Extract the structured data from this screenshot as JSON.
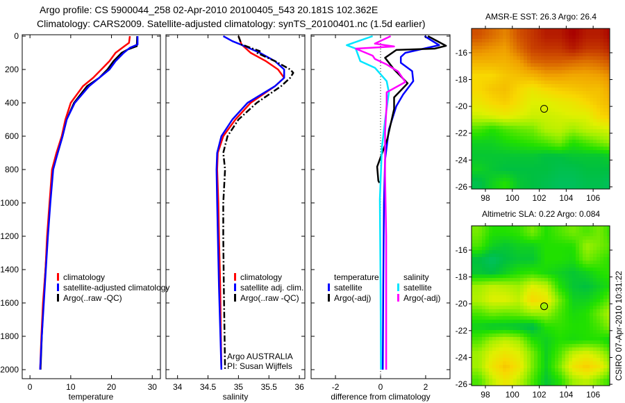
{
  "header": {
    "title_line1": "Argo profile: CS 5900044_258 02-Apr-2010 20100405_543 20.181S 102.362E",
    "title_line2": "Climatology: CARS2009. Satellite-adjusted climatology: synTS_20100401.nc (1.5d earlier)"
  },
  "footer": {
    "stamp": "CSIRO 07-Apr-2010 10:31:22"
  },
  "colors": {
    "climatology": "#ff0000",
    "satellite": "#0000ff",
    "argo": "#000000",
    "sal_satellite": "#00e5ff",
    "sal_argo": "#ff00ff"
  },
  "chart_data": [
    {
      "type": "line",
      "xlabel": "temperature",
      "ylabel": "",
      "xlim": [
        -1.9,
        32
      ],
      "ylim": [
        2055,
        0
      ],
      "xticks": [
        "0",
        "10",
        "20",
        "30"
      ],
      "yticks": [
        "0",
        "200",
        "400",
        "600",
        "800",
        "1000",
        "1200",
        "1400",
        "1600",
        "1800",
        "2000"
      ],
      "legend": {
        "placement": "center-left",
        "entries": [
          "climatology",
          "satellite-adjusted climatology",
          "Argo(..raw -QC)"
        ]
      },
      "series": [
        {
          "name": "Argo(..raw -QC)",
          "color": "#000000",
          "depth": [
            0,
            60,
            80,
            100,
            150,
            200,
            250,
            300,
            400,
            500,
            600,
            700,
            800,
            1000,
            1200,
            1400,
            1600,
            1800,
            2000
          ],
          "values": [
            26.3,
            26.2,
            24,
            22.5,
            20.5,
            19,
            17,
            14,
            10.8,
            9,
            8,
            6.8,
            5.5,
            4.9,
            4.3,
            3.8,
            3.3,
            2.9,
            2.6
          ]
        },
        {
          "name": "climatology",
          "color": "#ff0000",
          "depth": [
            0,
            40,
            60,
            100,
            150,
            200,
            250,
            300,
            400,
            500,
            600,
            700,
            800,
            1000,
            1200,
            1400,
            1600,
            1800,
            2000
          ],
          "values": [
            24.5,
            24.3,
            23.2,
            21,
            19.5,
            17.5,
            15.5,
            13,
            10,
            8.7,
            7.8,
            6.5,
            5.4,
            4.8,
            4.2,
            3.8,
            3.2,
            2.8,
            2.5
          ]
        },
        {
          "name": "satellite-adjusted climatology",
          "color": "#0000ff",
          "depth": [
            0,
            50,
            70,
            100,
            150,
            200,
            250,
            300,
            400,
            500,
            600,
            700,
            800,
            1000,
            1200,
            1400,
            1600,
            1800,
            2000
          ],
          "values": [
            26.4,
            26.4,
            24.5,
            23,
            21,
            19.5,
            17,
            14.5,
            11,
            9,
            8,
            6.8,
            5.7,
            5,
            4.4,
            3.9,
            3.4,
            2.9,
            2.5
          ]
        }
      ]
    },
    {
      "type": "line",
      "xlabel": "salinity",
      "ylabel": "",
      "xlim": [
        33.81,
        36.09
      ],
      "ylim": [
        2055,
        0
      ],
      "xticks": [
        "34",
        "34.5",
        "35",
        "35.5",
        "36"
      ],
      "legend": {
        "placement": "center-right",
        "entries": [
          "climatology",
          "satellite adj. clim.",
          "Argo(..raw -QC)"
        ]
      },
      "annotations": [
        "Argo AUSTRALIA",
        "PI: Susan Wijffels"
      ],
      "series": [
        {
          "name": "climatology",
          "color": "#ff0000",
          "depth": [
            0,
            50,
            100,
            150,
            200,
            250,
            300,
            400,
            500,
            600,
            700,
            800,
            1000,
            1200,
            1500,
            2000
          ],
          "values": [
            35.0,
            35.05,
            35.2,
            35.45,
            35.65,
            35.75,
            35.6,
            35.2,
            34.95,
            34.75,
            34.66,
            34.65,
            34.67,
            34.68,
            34.7,
            34.72
          ]
        },
        {
          "name": "satellite adj. clim.",
          "color": "#0000ff",
          "depth": [
            0,
            30,
            60,
            100,
            150,
            200,
            250,
            300,
            400,
            500,
            600,
            700,
            800,
            1000,
            1500,
            2000
          ],
          "values": [
            34.75,
            34.9,
            35.1,
            35.35,
            35.6,
            35.75,
            35.75,
            35.6,
            35.15,
            34.9,
            34.72,
            34.65,
            34.64,
            34.65,
            34.68,
            34.72
          ]
        },
        {
          "name": "Argo(..raw -QC)",
          "color": "#000000",
          "depth": [
            0,
            50,
            90,
            100,
            150,
            200,
            220,
            250,
            300,
            400,
            500,
            600,
            700,
            800,
            1000,
            1200,
            1500,
            2000
          ],
          "values": [
            35.0,
            35.05,
            35.35,
            35.3,
            35.6,
            35.85,
            35.9,
            35.85,
            35.7,
            35.3,
            35.0,
            34.82,
            34.75,
            34.78,
            34.75,
            34.75,
            34.76,
            34.78
          ]
        }
      ]
    },
    {
      "type": "line",
      "xlabel": "difference from climatology",
      "ylabel": "",
      "xlim": [
        -3.08,
        3.08
      ],
      "ylim": [
        2055,
        0
      ],
      "xticks": [
        "-2",
        "0",
        "2"
      ],
      "legend": {
        "placement": "center",
        "temp_heading": "temperature",
        "sal_heading": "salinity",
        "entries": [
          "satellite",
          "Argo(-adj)",
          "satellite",
          "Argo(-adj)"
        ]
      },
      "series": [
        {
          "name": "temperature satellite",
          "color": "#0000ff",
          "depth": [
            0,
            54,
            100,
            125,
            160,
            210,
            270,
            350,
            420,
            560,
            740,
            1000,
            1500,
            2000
          ],
          "values": [
            1.95,
            2.6,
            1.1,
            0.9,
            0.9,
            1.4,
            1.45,
            1.0,
            0.7,
            0.37,
            0.2,
            0.15,
            0.12,
            0.1
          ]
        },
        {
          "name": "temperature Argo(-adj)",
          "color": "#000000",
          "depth": [
            0,
            58,
            75,
            83,
            130,
            200,
            283,
            367,
            437,
            617,
            783,
            867,
            880
          ],
          "values": [
            2.1,
            2.9,
            2.4,
            0.7,
            0.2,
            0.6,
            1.2,
            0.6,
            0.6,
            0.3,
            -0.15,
            -0.1,
            -0.05
          ]
        },
        {
          "name": "salinity satellite",
          "color": "#00e5ff",
          "depth": [
            0,
            54,
            75,
            150,
            190,
            270,
            337,
            505,
            670,
            980,
            1500,
            2000
          ],
          "values": [
            -0.35,
            -1.5,
            -1.1,
            -0.9,
            -0.25,
            0.27,
            0.37,
            0.2,
            0.06,
            -0.03,
            0.0,
            0.02
          ]
        },
        {
          "name": "salinity Argo(-adj)",
          "color": "#ff00ff",
          "depth": [
            0,
            45,
            62,
            75,
            117,
            137,
            170,
            212,
            275,
            337,
            408,
            575,
            838,
            1200,
            2000
          ],
          "values": [
            0.45,
            -0.25,
            0.6,
            -1.1,
            -0.35,
            -0.25,
            0.27,
            0.78,
            1.1,
            0.27,
            0.27,
            0.2,
            0.2,
            0.25,
            0.25
          ]
        }
      ]
    },
    {
      "type": "heatmap",
      "title": "AMSR-E SST: 26.3 Argo: 26.4",
      "lon_range": [
        96.97,
        107.23
      ],
      "lat_range": [
        -26.16,
        -14.19
      ],
      "xticks": [
        "98",
        "100",
        "102",
        "104",
        "106"
      ],
      "yticks": [
        "-16",
        "-18",
        "-20",
        "-22",
        "-24",
        "-26"
      ],
      "argo_position": [
        102.362,
        -20.181
      ],
      "grid_lon": [
        97.5,
        98.5,
        99.5,
        100.5,
        101.5,
        102.5,
        103.5,
        104.5,
        105.5,
        106.5,
        107.5
      ],
      "grid_lat": [
        -14.7,
        -15.7,
        -16.7,
        -17.7,
        -18.7,
        -19.7,
        -20.7,
        -21.7,
        -22.7,
        -23.7,
        -24.7,
        -25.7
      ],
      "values_normalized": [
        [
          0.85,
          0.8,
          0.75,
          0.85,
          0.9,
          0.95,
          0.95,
          1.0,
          0.95,
          0.95,
          1.0
        ],
        [
          0.75,
          0.72,
          0.7,
          0.8,
          0.88,
          0.9,
          0.9,
          0.95,
          0.9,
          0.9,
          0.95
        ],
        [
          0.65,
          0.65,
          0.65,
          0.7,
          0.8,
          0.82,
          0.82,
          0.8,
          0.78,
          0.8,
          0.85
        ],
        [
          0.55,
          0.55,
          0.6,
          0.62,
          0.65,
          0.7,
          0.7,
          0.68,
          0.68,
          0.7,
          0.75
        ],
        [
          0.55,
          0.6,
          0.62,
          0.55,
          0.5,
          0.55,
          0.58,
          0.6,
          0.62,
          0.62,
          0.7
        ],
        [
          0.5,
          0.55,
          0.58,
          0.52,
          0.45,
          0.45,
          0.48,
          0.5,
          0.55,
          0.6,
          0.65
        ],
        [
          0.42,
          0.45,
          0.48,
          0.45,
          0.42,
          0.42,
          0.43,
          0.45,
          0.45,
          0.55,
          0.6
        ],
        [
          0.25,
          0.2,
          0.25,
          0.28,
          0.3,
          0.38,
          0.4,
          0.35,
          0.4,
          0.42,
          0.45
        ],
        [
          0.15,
          0.15,
          0.18,
          0.2,
          0.22,
          0.25,
          0.3,
          0.2,
          0.25,
          0.3,
          0.35
        ],
        [
          0.12,
          0.12,
          0.12,
          0.12,
          0.12,
          0.1,
          0.1,
          0.12,
          0.12,
          0.12,
          0.15
        ],
        [
          0.15,
          0.12,
          0.1,
          0.1,
          0.1,
          0.1,
          0.08,
          0.08,
          0.1,
          0.1,
          0.1
        ],
        [
          0.08,
          0.15,
          0.2,
          0.12,
          0.1,
          0.08,
          0.06,
          0.06,
          0.08,
          0.08,
          0.05
        ]
      ]
    },
    {
      "type": "heatmap",
      "title": "Altimetric SLA: 0.22 Argo: 0.084",
      "lon_range": [
        96.97,
        107.23
      ],
      "lat_range": [
        -26.1,
        -14.19
      ],
      "xticks": [
        "98",
        "100",
        "102",
        "104",
        "106"
      ],
      "yticks": [
        "-16",
        "-18",
        "-20",
        "-22",
        "-24",
        "-26"
      ],
      "argo_position": [
        102.362,
        -20.181
      ],
      "argo_marker_color": "#a0f000",
      "grid_lon": [
        97.5,
        98.5,
        99.5,
        100.5,
        101.5,
        102.5,
        103.5,
        104.5,
        105.5,
        106.5,
        107.5
      ],
      "grid_lat": [
        -14.7,
        -15.7,
        -16.7,
        -17.7,
        -18.7,
        -19.7,
        -20.7,
        -21.7,
        -22.7,
        -23.7,
        -24.7,
        -25.7
      ],
      "values_normalized": [
        [
          0.3,
          0.2,
          0.2,
          0.22,
          0.3,
          0.2,
          0.25,
          0.3,
          0.25,
          0.3,
          0.2
        ],
        [
          0.25,
          0.15,
          0.12,
          0.15,
          0.15,
          0.2,
          0.2,
          0.2,
          0.35,
          0.3,
          0.25
        ],
        [
          0.1,
          0.05,
          0.1,
          0.12,
          0.12,
          0.2,
          0.2,
          0.18,
          0.3,
          0.25,
          0.2
        ],
        [
          0.12,
          0.1,
          0.15,
          0.2,
          0.22,
          0.18,
          0.15,
          0.12,
          0.15,
          0.2,
          0.22
        ],
        [
          0.35,
          0.4,
          0.38,
          0.35,
          0.45,
          0.4,
          0.2,
          0.12,
          0.1,
          0.15,
          0.2
        ],
        [
          0.38,
          0.45,
          0.45,
          0.4,
          0.55,
          0.5,
          0.3,
          0.15,
          0.15,
          0.2,
          0.3
        ],
        [
          0.25,
          0.3,
          0.28,
          0.3,
          0.35,
          0.35,
          0.25,
          0.18,
          0.2,
          0.3,
          0.4
        ],
        [
          0.15,
          0.12,
          0.12,
          0.1,
          0.08,
          0.2,
          0.22,
          0.2,
          0.2,
          0.25,
          0.35
        ],
        [
          0.25,
          0.35,
          0.4,
          0.35,
          0.2,
          0.15,
          0.2,
          0.18,
          0.2,
          0.2,
          0.15
        ],
        [
          0.35,
          0.45,
          0.5,
          0.45,
          0.3,
          0.15,
          0.25,
          0.4,
          0.45,
          0.38,
          0.25
        ],
        [
          0.35,
          0.5,
          0.6,
          0.5,
          0.3,
          0.15,
          0.3,
          0.5,
          0.58,
          0.5,
          0.3
        ],
        [
          0.25,
          0.4,
          0.5,
          0.4,
          0.25,
          0.12,
          0.2,
          0.35,
          0.4,
          0.3,
          0.2
        ]
      ]
    }
  ]
}
